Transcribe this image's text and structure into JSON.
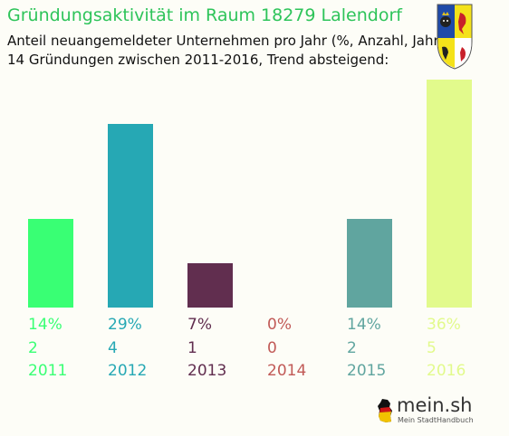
{
  "title": "Gründungsaktivität im Raum 18279 Lalendorf",
  "subtitle_lines": [
    "Anteil neuangemeldeter Unternehmen pro Jahr (%, Anzahl, Jahr)",
    "14 Gründungen zwischen 2011-2016, Trend absteigend:"
  ],
  "chart_data": {
    "type": "bar",
    "categories": [
      "2011",
      "2012",
      "2013",
      "2014",
      "2015",
      "2016"
    ],
    "values": [
      14,
      29,
      7,
      0,
      14,
      36
    ],
    "value_labels": [
      "14%",
      "29%",
      "7%",
      "0%",
      "14%",
      "36%"
    ],
    "counts": [
      "2",
      "4",
      "1",
      "0",
      "2",
      "5"
    ],
    "colors": [
      "#39ff74",
      "#26a8b4",
      "#612e4f",
      "#c15a57",
      "#60a59f",
      "#e2fa8c"
    ],
    "unit": "%",
    "ylim": [
      0,
      36
    ],
    "grid": false,
    "axes_visible": false
  },
  "crest_icon": "coat-of-arms-mecklenburg-vorpommern",
  "logo": {
    "name": "mein.sh",
    "tagline": "Mein StadtHandbuch",
    "icon": "germany-map-icon"
  }
}
